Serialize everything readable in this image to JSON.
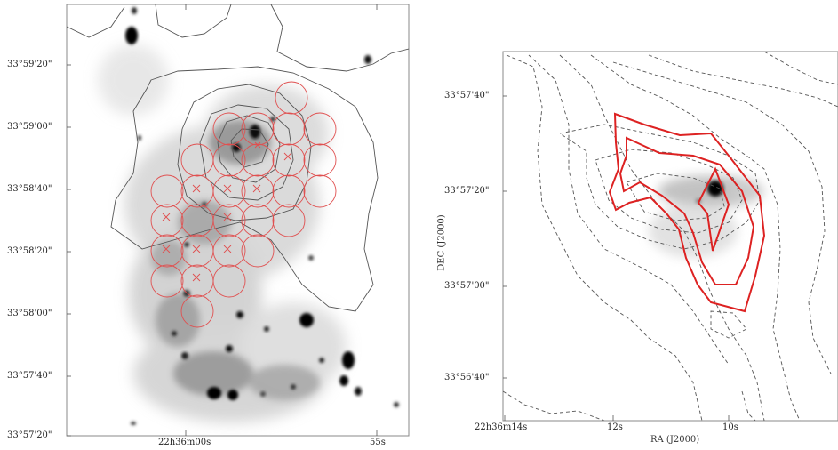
{
  "left_panel": {
    "y_tick_labels": [
      "33°59'20\"",
      "33°59'00\"",
      "33°58'40\"",
      "33°58'20\"",
      "33°58'00\"",
      "33°57'40\"",
      "33°57'20\""
    ],
    "x_tick_labels": [
      "22h36m00s",
      "55s"
    ],
    "contour_color": "#555555",
    "beam_color": "#e05050"
  },
  "right_panel": {
    "y_tick_labels": [
      "33°57'40\"",
      "33°57'20\"",
      "33°57'00\"",
      "33°56'40\""
    ],
    "x_tick_labels": [
      "22h36m14s",
      "12s",
      "10s"
    ],
    "y_axis_title": "DEC (J2000)",
    "x_axis_title": "RA (J2000)",
    "dashed_contour_color": "#555555",
    "solid_contour_color": "#dd2222"
  }
}
